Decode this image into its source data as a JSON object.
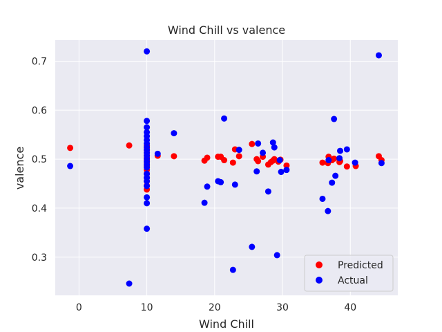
{
  "chart_data": {
    "type": "scatter",
    "title": "Wind Chill vs valence",
    "xlabel": "Wind Chill",
    "ylabel": "valence",
    "xlim": [
      -3.5,
      47
    ],
    "ylim": [
      0.222,
      0.743
    ],
    "xticks": [
      0,
      10,
      20,
      30,
      40
    ],
    "yticks": [
      0.3,
      0.4,
      0.5,
      0.6,
      0.7
    ],
    "xtick_labels": [
      "0",
      "10",
      "20",
      "30",
      "40"
    ],
    "ytick_labels": [
      "0.3",
      "0.4",
      "0.5",
      "0.6",
      "0.7"
    ],
    "grid": true,
    "legend_position": "lower-right",
    "colors": {
      "plot_background": "#eaeaf2",
      "grid": "#ffffff",
      "predicted": "#ff0000",
      "actual": "#0000ff"
    },
    "series": [
      {
        "name": "Predicted",
        "color": "#ff0000",
        "points": [
          [
            -1.3,
            0.523
          ],
          [
            7.4,
            0.528
          ],
          [
            10,
            0.438
          ],
          [
            10,
            0.446
          ],
          [
            10,
            0.455
          ],
          [
            10,
            0.462
          ],
          [
            10,
            0.47
          ],
          [
            10,
            0.478
          ],
          [
            10,
            0.486
          ],
          [
            10,
            0.492
          ],
          [
            10,
            0.498
          ],
          [
            10,
            0.503
          ],
          [
            10,
            0.508
          ],
          [
            10,
            0.513
          ],
          [
            10,
            0.518
          ],
          [
            10,
            0.523
          ],
          [
            10,
            0.528
          ],
          [
            11.6,
            0.507
          ],
          [
            14,
            0.506
          ],
          [
            18.5,
            0.497
          ],
          [
            18.9,
            0.503
          ],
          [
            20.5,
            0.505
          ],
          [
            20.9,
            0.505
          ],
          [
            21.4,
            0.498
          ],
          [
            22.7,
            0.493
          ],
          [
            23,
            0.52
          ],
          [
            23.6,
            0.506
          ],
          [
            25.5,
            0.531
          ],
          [
            26.2,
            0.5
          ],
          [
            26.4,
            0.496
          ],
          [
            27.1,
            0.505
          ],
          [
            27.9,
            0.489
          ],
          [
            28.3,
            0.494
          ],
          [
            28.6,
            0.497
          ],
          [
            28.8,
            0.5
          ],
          [
            29.4,
            0.495
          ],
          [
            29.7,
            0.499
          ],
          [
            30.6,
            0.487
          ],
          [
            35.9,
            0.493
          ],
          [
            36.7,
            0.492
          ],
          [
            36.8,
            0.505
          ],
          [
            37.3,
            0.498
          ],
          [
            37.6,
            0.501
          ],
          [
            38.4,
            0.494
          ],
          [
            38.5,
            0.496
          ],
          [
            39.5,
            0.485
          ],
          [
            40.8,
            0.486
          ],
          [
            44.2,
            0.506
          ],
          [
            44.6,
            0.498
          ]
        ]
      },
      {
        "name": "Actual",
        "color": "#0000ff",
        "points": [
          [
            -1.3,
            0.486
          ],
          [
            7.4,
            0.246
          ],
          [
            10,
            0.72
          ],
          [
            10,
            0.578
          ],
          [
            10,
            0.565
          ],
          [
            10,
            0.555
          ],
          [
            10,
            0.547
          ],
          [
            10,
            0.539
          ],
          [
            10,
            0.532
          ],
          [
            10,
            0.525
          ],
          [
            10,
            0.519
          ],
          [
            10,
            0.513
          ],
          [
            10,
            0.507
          ],
          [
            10,
            0.501
          ],
          [
            10,
            0.495
          ],
          [
            10,
            0.489
          ],
          [
            10,
            0.483
          ],
          [
            10,
            0.47
          ],
          [
            10,
            0.462
          ],
          [
            10,
            0.455
          ],
          [
            10,
            0.445
          ],
          [
            10,
            0.422
          ],
          [
            10,
            0.41
          ],
          [
            10,
            0.358
          ],
          [
            11.6,
            0.511
          ],
          [
            14,
            0.553
          ],
          [
            18.5,
            0.411
          ],
          [
            18.9,
            0.444
          ],
          [
            20.5,
            0.455
          ],
          [
            20.9,
            0.453
          ],
          [
            21.4,
            0.583
          ],
          [
            22.7,
            0.274
          ],
          [
            23,
            0.448
          ],
          [
            23.6,
            0.519
          ],
          [
            25.5,
            0.321
          ],
          [
            26.2,
            0.475
          ],
          [
            26.4,
            0.532
          ],
          [
            27.1,
            0.513
          ],
          [
            27.9,
            0.434
          ],
          [
            28.6,
            0.534
          ],
          [
            28.8,
            0.524
          ],
          [
            29.2,
            0.304
          ],
          [
            29.6,
            0.498
          ],
          [
            29.8,
            0.474
          ],
          [
            30.6,
            0.478
          ],
          [
            35.9,
            0.419
          ],
          [
            36.7,
            0.394
          ],
          [
            36.8,
            0.498
          ],
          [
            37.3,
            0.452
          ],
          [
            37.6,
            0.582
          ],
          [
            37.8,
            0.466
          ],
          [
            38.4,
            0.502
          ],
          [
            38.5,
            0.517
          ],
          [
            39.5,
            0.52
          ],
          [
            40.7,
            0.493
          ],
          [
            44.2,
            0.712
          ],
          [
            44.6,
            0.492
          ]
        ]
      }
    ]
  }
}
